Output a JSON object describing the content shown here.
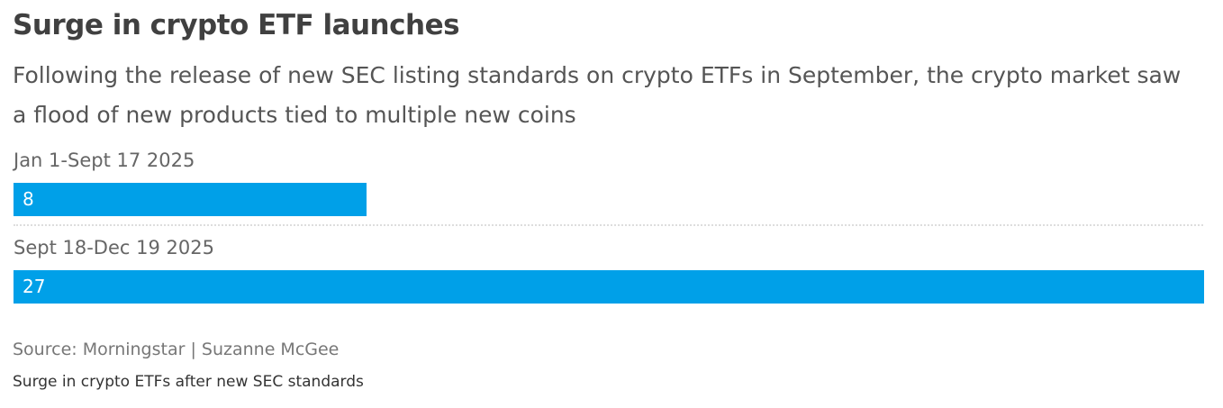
{
  "title": "Surge in crypto ETF launches",
  "subtitle": "Following the release of new SEC listing standards on crypto ETFs in September, the crypto market saw a flood of new products tied to multiple new coins",
  "source": "Source: Morningstar | Suzanne McGee",
  "footer": "Surge in crypto ETFs after new SEC standards",
  "chart_data": {
    "type": "bar",
    "orientation": "horizontal",
    "categories": [
      "Jan 1-Sept 17 2025",
      "Sept 18-Dec 19 2025"
    ],
    "values": [
      8,
      27
    ],
    "value_labels": [
      "8",
      "27"
    ],
    "color": "#00a0e8",
    "grid": false
  }
}
